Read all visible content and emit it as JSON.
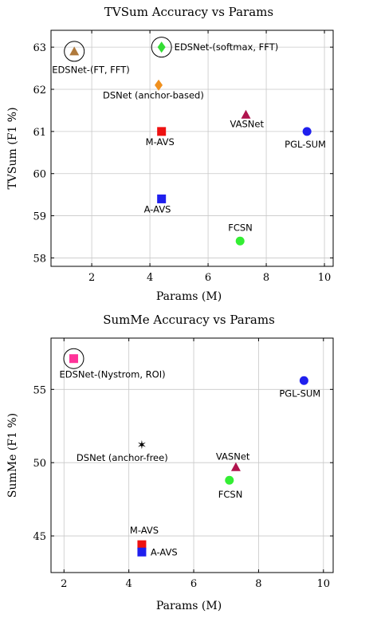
{
  "chart_data": [
    {
      "type": "scatter",
      "title": "TVSum Accuracy vs Params",
      "xlabel": "Params (M)",
      "ylabel": "TVSum (F1 %)",
      "xlim": [
        0.6,
        10.3
      ],
      "ylim": [
        57.8,
        63.4
      ],
      "xticks": [
        2,
        4,
        6,
        8,
        10
      ],
      "yticks": [
        58,
        59,
        60,
        61,
        62,
        63
      ],
      "grid": true,
      "points": [
        {
          "label": "EDSNet-(FT, FFT)",
          "x": 1.4,
          "y": 62.9,
          "marker": "triangle",
          "color": "#b07a3c",
          "circled": true
        },
        {
          "label": "EDSNet-(softmax, FFT)",
          "x": 4.4,
          "y": 63.0,
          "marker": "diamond",
          "color": "#33dd33",
          "circled": true
        },
        {
          "label": "DSNet (anchor-based)",
          "x": 4.3,
          "y": 62.1,
          "marker": "diamond",
          "color": "#f0901e",
          "circled": false
        },
        {
          "label": "VASNet",
          "x": 7.3,
          "y": 61.4,
          "marker": "triangle",
          "color": "#b0134d",
          "circled": false
        },
        {
          "label": "M-AVS",
          "x": 4.4,
          "y": 61.0,
          "marker": "square",
          "color": "#ee1111",
          "circled": false
        },
        {
          "label": "PGL-SUM",
          "x": 9.4,
          "y": 61.0,
          "marker": "circle",
          "color": "#1f1fee",
          "circled": false
        },
        {
          "label": "A-AVS",
          "x": 4.4,
          "y": 59.4,
          "marker": "square",
          "color": "#1f1fee",
          "circled": false
        },
        {
          "label": "FCSN",
          "x": 7.1,
          "y": 58.4,
          "marker": "circle",
          "color": "#33ee33",
          "circled": false
        }
      ]
    },
    {
      "type": "scatter",
      "title": "SumMe Accuracy vs Params",
      "xlabel": "Params (M)",
      "ylabel": "SumMe (F1 %)",
      "xlim": [
        1.6,
        10.3
      ],
      "ylim": [
        42.5,
        58.5
      ],
      "xticks": [
        2,
        4,
        6,
        8,
        10
      ],
      "yticks": [
        45,
        50,
        55
      ],
      "grid": true,
      "points": [
        {
          "label": "EDSNet-(Nystrom, ROI)",
          "x": 2.3,
          "y": 57.1,
          "marker": "square",
          "color": "#ff3399",
          "circled": true
        },
        {
          "label": "PGL-SUM",
          "x": 9.4,
          "y": 55.6,
          "marker": "circle",
          "color": "#1f1fee",
          "circled": false
        },
        {
          "label": "DSNet (anchor-free)",
          "x": 4.4,
          "y": 51.2,
          "marker": "star",
          "color": "#000000",
          "circled": false
        },
        {
          "label": "VASNet",
          "x": 7.3,
          "y": 49.7,
          "marker": "triangle",
          "color": "#b0134d",
          "circled": false
        },
        {
          "label": "FCSN",
          "x": 7.1,
          "y": 48.8,
          "marker": "circle",
          "color": "#33ee33",
          "circled": false
        },
        {
          "label": "M-AVS",
          "x": 4.4,
          "y": 44.4,
          "marker": "square",
          "color": "#ee1111",
          "circled": false
        },
        {
          "label": "A-AVS",
          "x": 4.4,
          "y": 43.9,
          "marker": "square",
          "color": "#1f1fee",
          "circled": false
        }
      ]
    }
  ]
}
